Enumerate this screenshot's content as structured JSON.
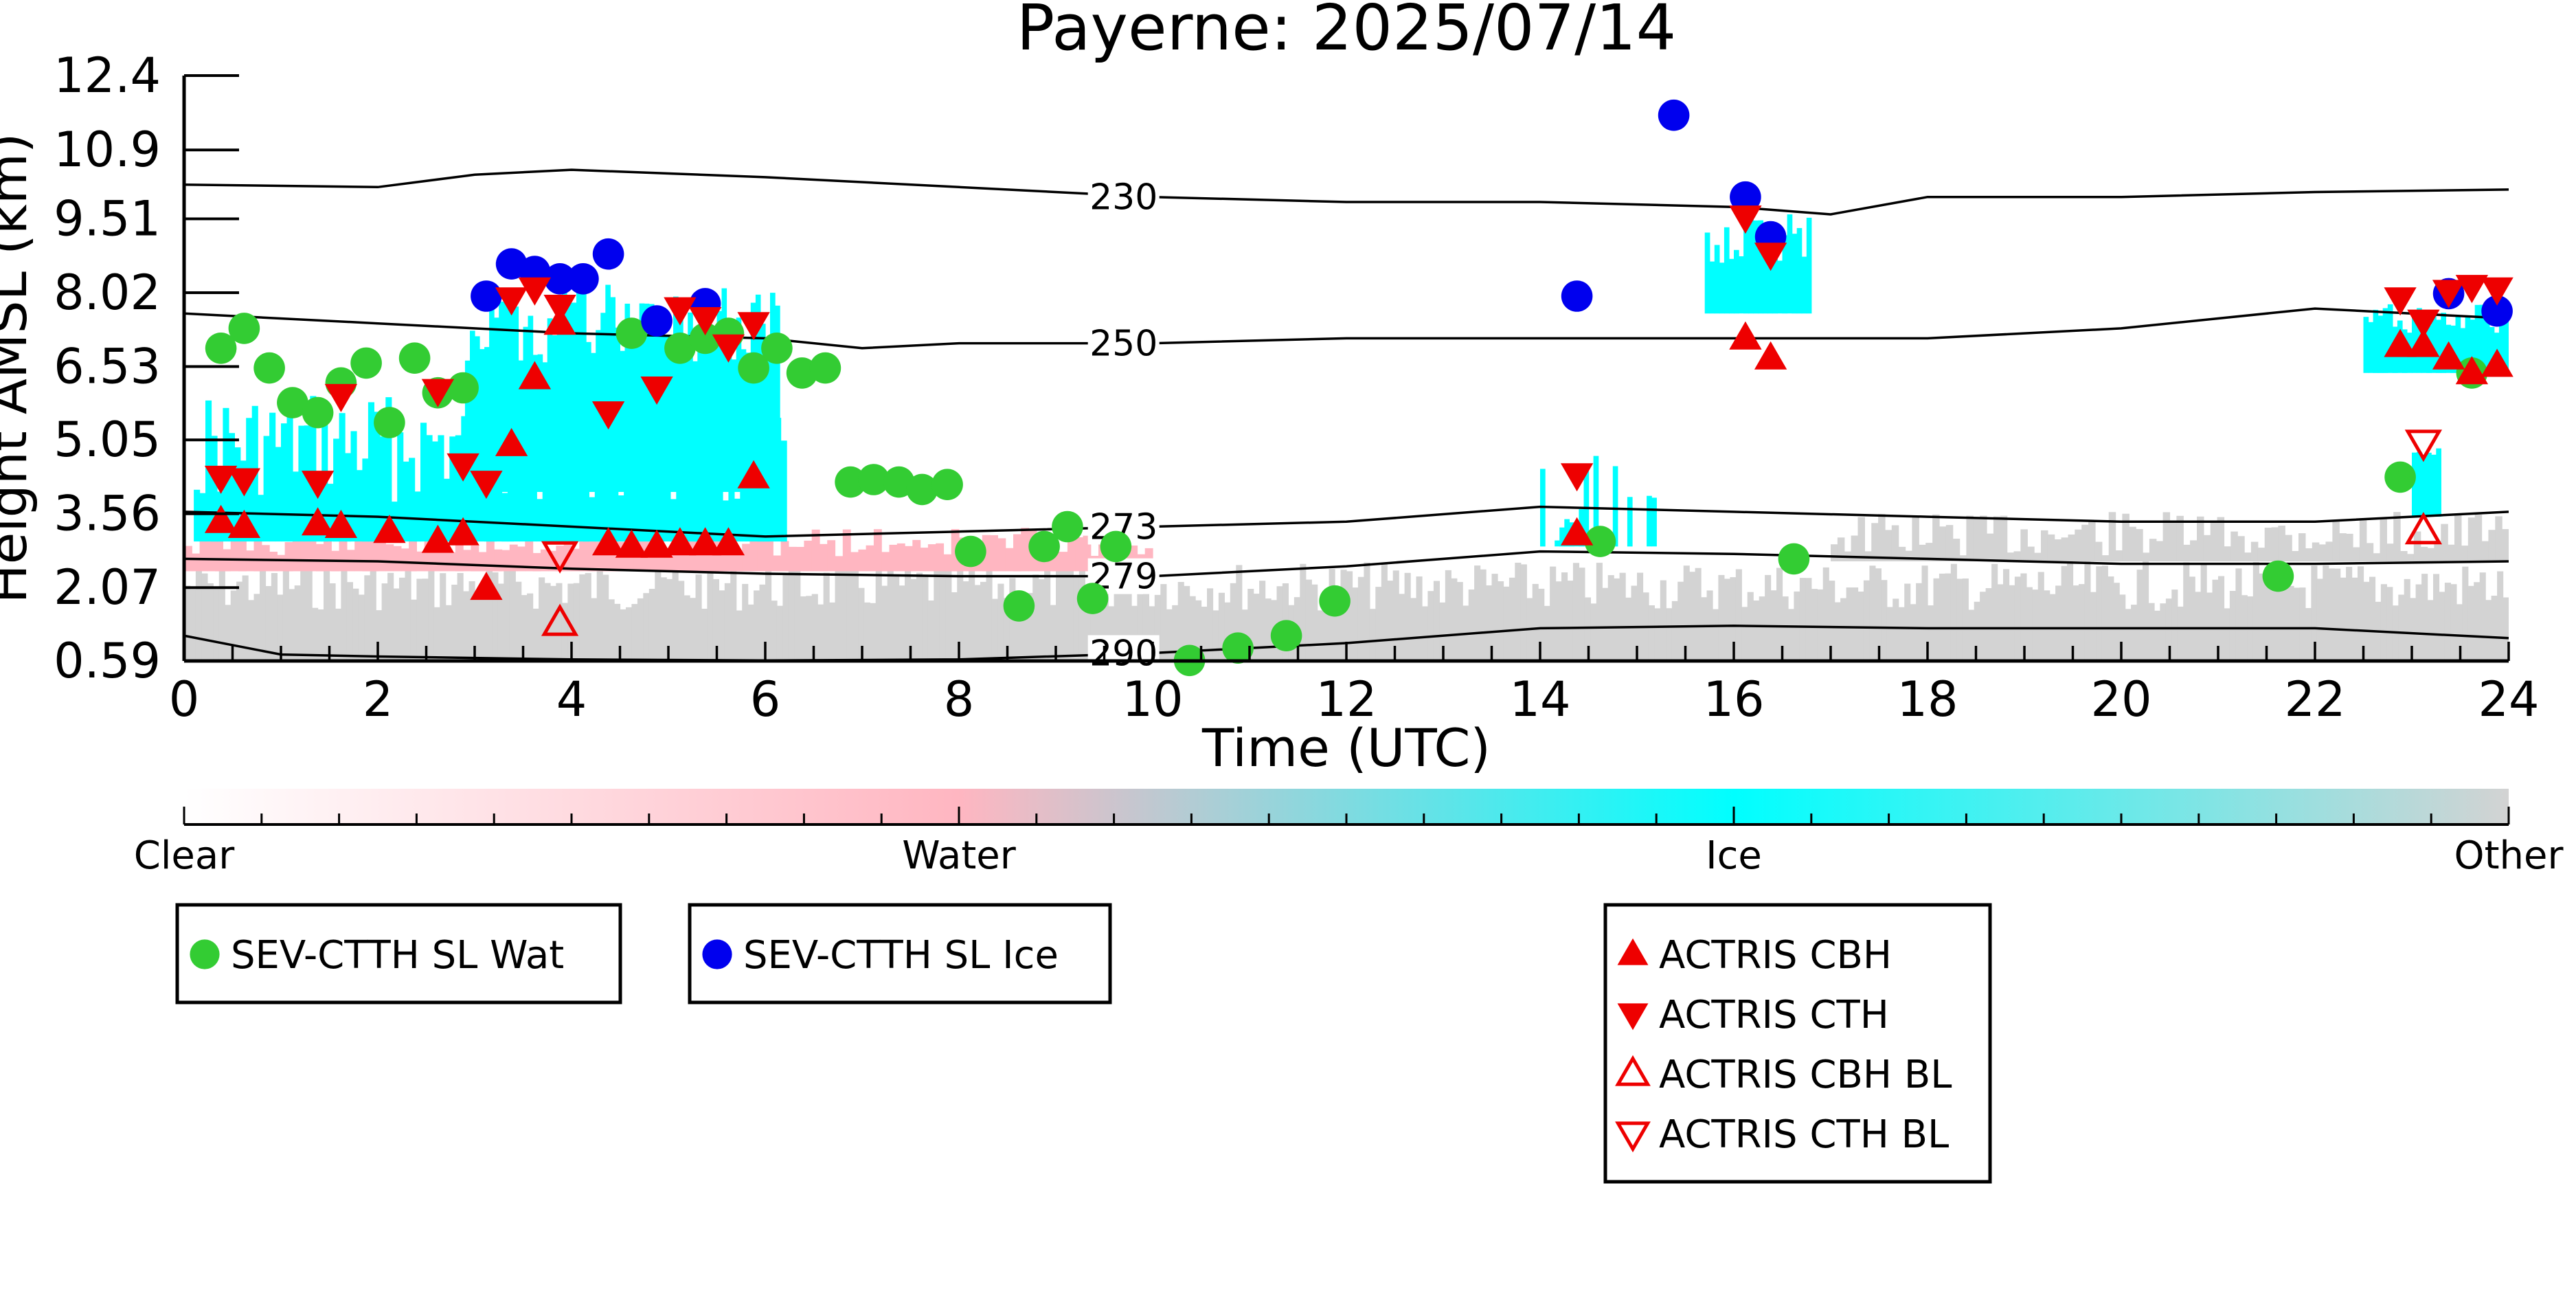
{
  "chart_data": {
    "type": "scatter",
    "title": "Payerne: 2025/07/14",
    "xlabel": "Time (UTC)",
    "ylabel": "Height AMSL (km)",
    "xlim": [
      0,
      24
    ],
    "ylim": [
      0.59,
      12.4
    ],
    "x_ticks": [
      0,
      2,
      4,
      6,
      8,
      10,
      12,
      14,
      16,
      18,
      20,
      22,
      24
    ],
    "x_tick_labels": [
      "0",
      "2",
      "4",
      "6",
      "8",
      "10",
      "12",
      "14",
      "16",
      "18",
      "20",
      "22",
      "24"
    ],
    "y_ticks": [
      0.59,
      2.07,
      3.56,
      5.05,
      6.53,
      8.02,
      9.51,
      10.9,
      12.4
    ],
    "y_tick_labels": [
      "0.59",
      "2.07",
      "3.56",
      "5.05",
      "6.53",
      "8.02",
      "9.51",
      "10.9",
      "12.4"
    ],
    "grid": false,
    "colorbar": {
      "labels": [
        "Clear",
        "Water",
        "Ice",
        "Other"
      ],
      "colors": [
        "#ffffff",
        "#ffb6c1",
        "#00ffff",
        "#d3d3d3"
      ]
    },
    "isotherms": [
      {
        "label": "230",
        "x": [
          0,
          2,
          3,
          4,
          6,
          8,
          10,
          12,
          14,
          16,
          17,
          18,
          20,
          22,
          24
        ],
        "y": [
          10.2,
          10.15,
          10.4,
          10.5,
          10.35,
          10.15,
          9.95,
          9.85,
          9.85,
          9.75,
          9.6,
          9.95,
          9.95,
          10.05,
          10.1
        ]
      },
      {
        "label": "250",
        "x": [
          0,
          2,
          4,
          6,
          7,
          8,
          10,
          12,
          14,
          16,
          18,
          20,
          22,
          24
        ],
        "y": [
          7.6,
          7.4,
          7.2,
          7.1,
          6.9,
          7.0,
          7.0,
          7.1,
          7.1,
          7.1,
          7.1,
          7.3,
          7.7,
          7.5
        ]
      },
      {
        "label": "273",
        "x": [
          0,
          2,
          4,
          6,
          8,
          10,
          12,
          14,
          16,
          18,
          20,
          22,
          24
        ],
        "y": [
          3.6,
          3.5,
          3.3,
          3.1,
          3.2,
          3.3,
          3.4,
          3.7,
          3.6,
          3.5,
          3.4,
          3.4,
          3.6
        ]
      },
      {
        "label": "279",
        "x": [
          0,
          2,
          4,
          6,
          8,
          10,
          12,
          14,
          16,
          18,
          20,
          22,
          24
        ],
        "y": [
          2.65,
          2.6,
          2.45,
          2.35,
          2.3,
          2.3,
          2.5,
          2.8,
          2.75,
          2.65,
          2.55,
          2.55,
          2.6
        ]
      },
      {
        "label": "290",
        "x": [
          0,
          1,
          2,
          4,
          6,
          8,
          10,
          12,
          14,
          16,
          18,
          20,
          22,
          24
        ],
        "y": [
          1.1,
          0.72,
          0.68,
          0.62,
          0.6,
          0.62,
          0.75,
          0.95,
          1.25,
          1.3,
          1.25,
          1.25,
          1.25,
          1.05
        ]
      }
    ],
    "series": [
      {
        "name": "SEV-CTTH SL Wat",
        "color": "#33cc33",
        "marker": "circle",
        "x": [
          0.38,
          0.62,
          0.88,
          1.12,
          1.38,
          1.62,
          1.88,
          2.12,
          2.38,
          2.62,
          2.88,
          4.62,
          5.12,
          5.38,
          5.62,
          5.88,
          6.12,
          6.38,
          6.62,
          6.88,
          7.12,
          7.38,
          7.62,
          7.88,
          8.12,
          8.62,
          8.88,
          9.12,
          9.38,
          9.62,
          10.38,
          10.88,
          11.38,
          11.88,
          14.62,
          16.62,
          21.62,
          22.88,
          23.62
        ],
        "y": [
          6.9,
          7.3,
          6.5,
          5.8,
          5.6,
          6.2,
          6.6,
          5.4,
          6.7,
          6.0,
          6.1,
          7.2,
          6.9,
          7.1,
          7.2,
          6.5,
          6.9,
          6.4,
          6.5,
          4.2,
          4.25,
          4.2,
          4.05,
          4.15,
          2.8,
          1.7,
          2.9,
          3.3,
          1.85,
          2.9,
          0.6,
          0.85,
          1.1,
          1.8,
          3.0,
          2.65,
          2.3,
          4.3,
          6.4
        ]
      },
      {
        "name": "SEV-CTTH SL Ice",
        "color": "#0000ee",
        "marker": "circle",
        "x": [
          3.12,
          3.38,
          3.62,
          3.88,
          4.12,
          4.38,
          4.88,
          5.38,
          14.38,
          15.38,
          16.12,
          16.38,
          23.38,
          23.88
        ],
        "y": [
          7.95,
          8.6,
          8.45,
          8.3,
          8.3,
          8.8,
          7.45,
          7.8,
          7.95,
          11.6,
          9.95,
          9.15,
          8.0,
          7.65
        ]
      },
      {
        "name": "ACTRIS CBH",
        "color": "#ee0000",
        "marker": "triangle-up",
        "x": [
          0.38,
          0.62,
          1.38,
          1.62,
          2.12,
          2.62,
          2.88,
          3.12,
          3.38,
          3.62,
          3.88,
          4.38,
          4.62,
          4.88,
          5.12,
          5.38,
          5.62,
          5.88,
          14.38,
          16.12,
          16.38,
          22.88,
          23.12,
          23.38,
          23.62,
          23.88
        ],
        "y": [
          3.4,
          3.3,
          3.35,
          3.3,
          3.2,
          3.0,
          3.15,
          2.05,
          4.95,
          6.3,
          7.4,
          2.95,
          2.9,
          2.9,
          2.95,
          2.95,
          2.95,
          4.3,
          3.15,
          7.1,
          6.7,
          6.95,
          6.95,
          6.7,
          6.4,
          6.55
        ]
      },
      {
        "name": "ACTRIS CTH",
        "color": "#ee0000",
        "marker": "triangle-down",
        "x": [
          0.38,
          0.62,
          1.38,
          1.62,
          2.62,
          2.88,
          3.12,
          3.38,
          3.62,
          3.88,
          4.38,
          4.88,
          5.12,
          5.38,
          5.62,
          5.88,
          14.38,
          16.12,
          16.38,
          22.88,
          23.12,
          23.38,
          23.62,
          23.88
        ],
        "y": [
          4.3,
          4.25,
          4.2,
          5.95,
          6.05,
          4.55,
          4.2,
          7.9,
          8.1,
          7.75,
          5.6,
          6.1,
          7.7,
          7.5,
          6.95,
          7.4,
          4.35,
          9.55,
          8.8,
          7.9,
          7.45,
          8.05,
          8.15,
          8.1
        ]
      },
      {
        "name": "ACTRIS CBH BL",
        "color": "#ee0000",
        "marker": "triangle-up-open",
        "x": [
          3.88,
          23.12
        ],
        "y": [
          1.35,
          3.2
        ]
      },
      {
        "name": "ACTRIS CTH BL",
        "color": "#ee0000",
        "marker": "triangle-down-open",
        "x": [
          3.88,
          23.12
        ],
        "y": [
          2.75,
          5.0
        ]
      }
    ],
    "legend_groups": [
      {
        "entries": [
          0
        ]
      },
      {
        "entries": [
          1
        ]
      },
      {
        "entries": [
          2,
          3,
          4,
          5
        ]
      }
    ]
  }
}
